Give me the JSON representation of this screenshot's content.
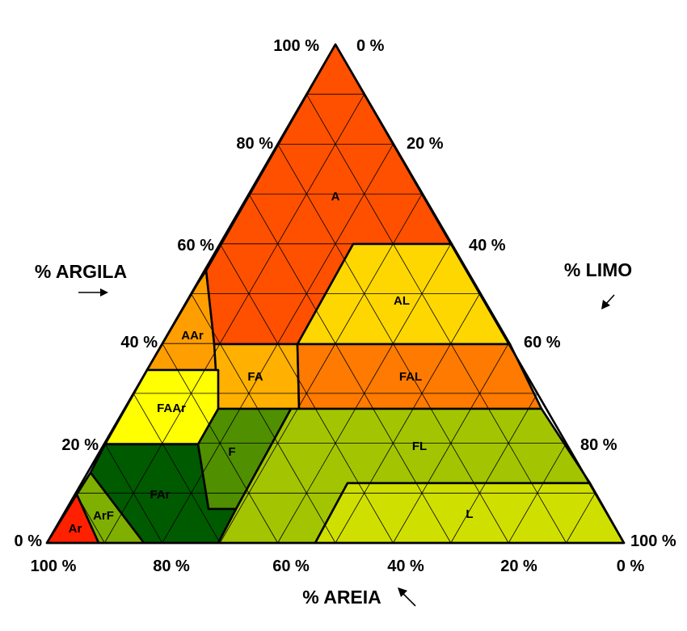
{
  "axes": {
    "clay": {
      "title": "% ARGILA",
      "ticks": [
        "100 %",
        "80 %",
        "60 %",
        "40 %",
        "20 %",
        "0 %"
      ]
    },
    "silt": {
      "title": "% LIMO",
      "ticks": [
        "0 %",
        "20 %",
        "40 %",
        "60 %",
        "80 %",
        "100 %"
      ]
    },
    "sand": {
      "title": "% AREIA",
      "ticks": [
        "100 %",
        "80 %",
        "60 %",
        "40 %",
        "20 %",
        "0 %"
      ]
    }
  },
  "classes": [
    {
      "code": "A",
      "color": "#ff5000"
    },
    {
      "code": "AL",
      "color": "#ffd700"
    },
    {
      "code": "AAr",
      "color": "#ff9e00"
    },
    {
      "code": "FA",
      "color": "#ffb000"
    },
    {
      "code": "FAL",
      "color": "#ff7a00"
    },
    {
      "code": "FAAr",
      "color": "#ffff00"
    },
    {
      "code": "F",
      "color": "#4f8f00"
    },
    {
      "code": "FL",
      "color": "#a3c400"
    },
    {
      "code": "FAr",
      "color": "#005a00"
    },
    {
      "code": "ArF",
      "color": "#7faf00"
    },
    {
      "code": "Ar",
      "color": "#ff2000"
    },
    {
      "code": "L",
      "color": "#cfe000"
    }
  ]
}
